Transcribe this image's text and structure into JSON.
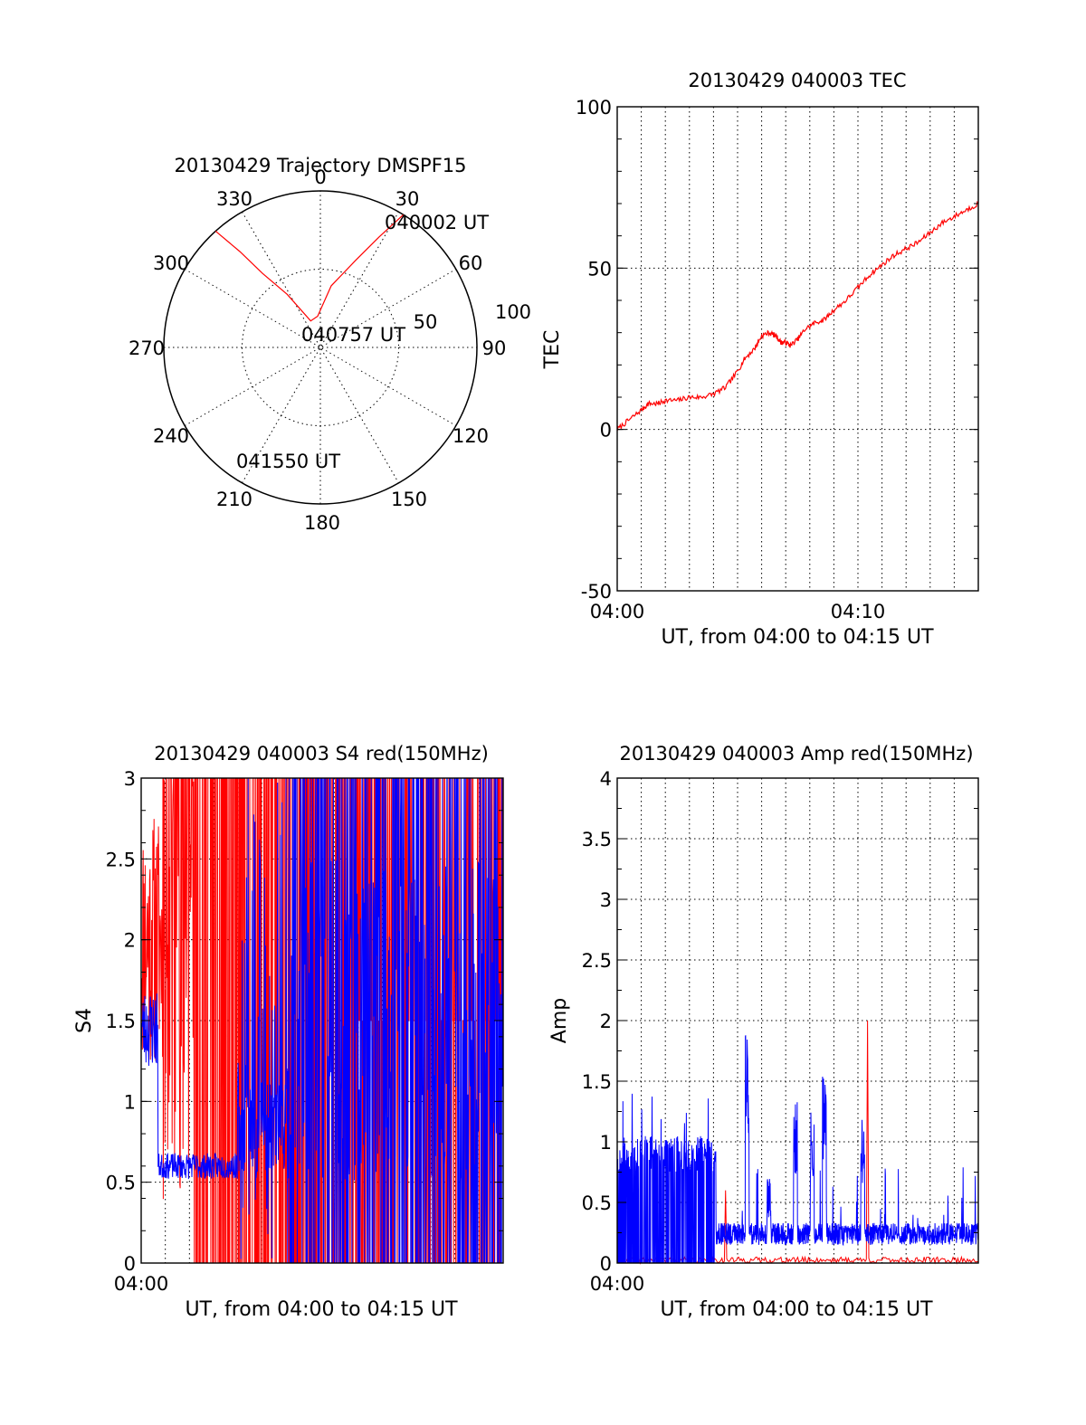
{
  "colors": {
    "red": "#ff0000",
    "blue": "#0000ff",
    "axis": "#000000"
  },
  "chart_data": [
    {
      "type": "polar",
      "title": "20130429 Trajectory DMSPF15",
      "angle_labels": [
        "0",
        "30",
        "60",
        "90",
        "120",
        "150",
        "180",
        "210",
        "240",
        "270",
        "300",
        "330"
      ],
      "radius_labels": [
        "50",
        "100"
      ],
      "radius_max": 100,
      "trajectory": [
        [
          32,
          100
        ],
        [
          28,
          80
        ],
        [
          22,
          60
        ],
        [
          10,
          40
        ],
        [
          -5,
          20
        ],
        [
          -20,
          18
        ],
        [
          -32,
          40
        ],
        [
          -38,
          60
        ],
        [
          -40,
          80
        ],
        [
          -42,
          100
        ]
      ],
      "annotations": [
        "040002 UT",
        "040757 UT",
        "041550 UT"
      ],
      "series_color": "#ff0000"
    },
    {
      "type": "line",
      "title": "20130429 040003 TEC",
      "xlabel": "UT, from 04:00 to 04:15 UT",
      "ylabel": "TEC",
      "xlim": [
        0,
        15
      ],
      "ylim": [
        -50,
        100
      ],
      "x_ticks": [
        "04:00",
        "04:10"
      ],
      "x_tick_values": [
        0,
        10
      ],
      "y_ticks": [
        "-50",
        "0",
        "50",
        "100"
      ],
      "y_tick_values": [
        -50,
        0,
        50,
        100
      ],
      "series": [
        {
          "color": "#ff0000",
          "x": [
            0,
            0.5,
            1,
            1.3,
            1.7,
            2,
            2.5,
            3,
            3.5,
            4,
            4.5,
            5,
            5.3,
            5.7,
            6,
            6.3,
            6.6,
            6.8,
            7,
            7.2,
            7.5,
            7.8,
            8.2,
            8.6,
            9,
            9.5,
            10,
            10.5,
            11,
            11.5,
            12,
            12.5,
            13,
            13.5,
            14,
            14.5,
            15
          ],
          "y": [
            0,
            3,
            6,
            8,
            8,
            9,
            9,
            10,
            10,
            11,
            13,
            18,
            22,
            25,
            29,
            30,
            29,
            27,
            27,
            26,
            28,
            31,
            33,
            34,
            37,
            40,
            44,
            48,
            51,
            54,
            56,
            58,
            61,
            64,
            66,
            68,
            70
          ]
        }
      ]
    },
    {
      "type": "line",
      "title": "20130429 040003 S4 red(150MHz)",
      "xlabel": "UT, from 04:00 to 04:15 UT",
      "ylabel": "S4",
      "xlim": [
        0,
        15
      ],
      "ylim": [
        0,
        3
      ],
      "x_ticks": [
        "04:00"
      ],
      "x_tick_values": [
        0
      ],
      "y_ticks": [
        "0",
        "0.5",
        "1",
        "1.5",
        "2",
        "2.5",
        "3"
      ],
      "y_tick_values": [
        0,
        0.5,
        1,
        1.5,
        2,
        2.5,
        3
      ],
      "series": [
        {
          "color": "#ff0000",
          "note_pattern": "noisy"
        },
        {
          "color": "#0000ff",
          "note_pattern": "noisy"
        }
      ]
    },
    {
      "type": "line",
      "title": "20130429 040003 Amp red(150MHz)",
      "xlabel": "UT, from 04:00 to 04:15 UT",
      "ylabel": "Amp",
      "xlim": [
        0,
        15
      ],
      "ylim": [
        0,
        4
      ],
      "x_ticks": [
        "04:00"
      ],
      "x_tick_values": [
        0
      ],
      "y_ticks": [
        "0",
        "0.5",
        "1",
        "1.5",
        "2",
        "2.5",
        "3",
        "3.5",
        "4"
      ],
      "y_tick_values": [
        0,
        0.5,
        1,
        1.5,
        2,
        2.5,
        3,
        3.5,
        4
      ],
      "series": [
        {
          "color": "#ff0000"
        },
        {
          "color": "#0000ff"
        }
      ]
    }
  ]
}
